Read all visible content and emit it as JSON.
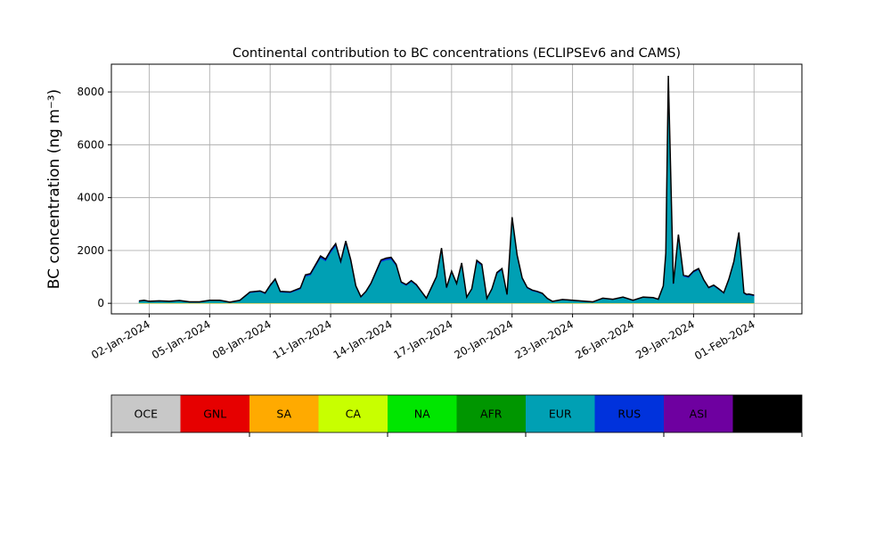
{
  "chart_data": {
    "type": "area",
    "stacked": true,
    "title": "Continental contribution to BC concentrations (ECLIPSEv6 and CAMS)",
    "xlabel": "",
    "ylabel": "BC concentration (ng m⁻³)",
    "ylim": [
      -400,
      9050
    ],
    "xlim": [
      "2023-12-31T03:00",
      "2024-02-03T09:00"
    ],
    "grid": true,
    "yticks": [
      0,
      2000,
      4000,
      6000,
      8000
    ],
    "ytick_labels": [
      "0",
      "2000",
      "4000",
      "6000",
      "8000"
    ],
    "xticks": [
      "2024-01-02",
      "2024-01-05",
      "2024-01-08",
      "2024-01-11",
      "2024-01-14",
      "2024-01-17",
      "2024-01-20",
      "2024-01-23",
      "2024-01-26",
      "2024-01-29",
      "2024-02-01"
    ],
    "xtick_labels": [
      "02-Jan-2024",
      "05-Jan-2024",
      "08-Jan-2024",
      "11-Jan-2024",
      "14-Jan-2024",
      "17-Jan-2024",
      "20-Jan-2024",
      "23-Jan-2024",
      "26-Jan-2024",
      "29-Jan-2024",
      "01-Feb-2024"
    ],
    "legend": {
      "placement": "bottom",
      "entries": [
        {
          "label": "OCE",
          "color": "#c8c8c8"
        },
        {
          "label": "GNL",
          "color": "#e60000"
        },
        {
          "label": "SA",
          "color": "#ffaa00"
        },
        {
          "label": "CA",
          "color": "#c8ff00"
        },
        {
          "label": "NA",
          "color": "#00e600"
        },
        {
          "label": "AFR",
          "color": "#009600"
        },
        {
          "label": "EUR",
          "color": "#00a0b4"
        },
        {
          "label": "RUS",
          "color": "#0032dc"
        },
        {
          "label": "ASI",
          "color": "#6e00a0"
        },
        {
          "label": "AUS",
          "color": "#000000"
        }
      ]
    },
    "x": [
      "2024-01-01T12:00",
      "2024-01-01T18:00",
      "2024-01-02T00:00",
      "2024-01-02T12:00",
      "2024-01-03T00:00",
      "2024-01-03T12:00",
      "2024-01-04T00:00",
      "2024-01-04T12:00",
      "2024-01-05T00:00",
      "2024-01-05T12:00",
      "2024-01-06T00:00",
      "2024-01-06T12:00",
      "2024-01-07T00:00",
      "2024-01-07T12:00",
      "2024-01-07T18:00",
      "2024-01-08T00:00",
      "2024-01-08T06:00",
      "2024-01-08T12:00",
      "2024-01-09T00:00",
      "2024-01-09T12:00",
      "2024-01-09T18:00",
      "2024-01-10T00:00",
      "2024-01-10T12:00",
      "2024-01-10T18:00",
      "2024-01-11T00:00",
      "2024-01-11T06:00",
      "2024-01-11T12:00",
      "2024-01-11T18:00",
      "2024-01-12T00:00",
      "2024-01-12T06:00",
      "2024-01-12T12:00",
      "2024-01-12T18:00",
      "2024-01-13T00:00",
      "2024-01-13T12:00",
      "2024-01-13T18:00",
      "2024-01-14T00:00",
      "2024-01-14T06:00",
      "2024-01-14T12:00",
      "2024-01-14T18:00",
      "2024-01-15T00:00",
      "2024-01-15T06:00",
      "2024-01-15T12:00",
      "2024-01-15T18:00",
      "2024-01-16T06:00",
      "2024-01-16T12:00",
      "2024-01-16T18:00",
      "2024-01-17T00:00",
      "2024-01-17T06:00",
      "2024-01-17T12:00",
      "2024-01-17T18:00",
      "2024-01-18T00:00",
      "2024-01-18T06:00",
      "2024-01-18T12:00",
      "2024-01-18T18:00",
      "2024-01-19T00:00",
      "2024-01-19T06:00",
      "2024-01-19T12:00",
      "2024-01-19T18:00",
      "2024-01-20T00:00",
      "2024-01-20T06:00",
      "2024-01-20T12:00",
      "2024-01-20T18:00",
      "2024-01-21T00:00",
      "2024-01-21T06:00",
      "2024-01-21T12:00",
      "2024-01-21T18:00",
      "2024-01-22T00:00",
      "2024-01-22T12:00",
      "2024-01-23T00:00",
      "2024-01-23T12:00",
      "2024-01-24T00:00",
      "2024-01-24T12:00",
      "2024-01-25T00:00",
      "2024-01-25T12:00",
      "2024-01-26T00:00",
      "2024-01-26T12:00",
      "2024-01-27T00:00",
      "2024-01-27T06:00",
      "2024-01-27T12:00",
      "2024-01-27T15:00",
      "2024-01-27T18:00",
      "2024-01-28T00:00",
      "2024-01-28T06:00",
      "2024-01-28T12:00",
      "2024-01-28T18:00",
      "2024-01-29T00:00",
      "2024-01-29T06:00",
      "2024-01-29T12:00",
      "2024-01-29T18:00",
      "2024-01-30T00:00",
      "2024-01-30T06:00",
      "2024-01-30T12:00",
      "2024-01-30T18:00",
      "2024-01-31T00:00",
      "2024-01-31T06:00",
      "2024-01-31T12:00",
      "2024-01-31T15:00",
      "2024-01-31T18:00",
      "2024-02-01T00:00"
    ],
    "series": [
      {
        "name": "OCE",
        "values": [
          5,
          5,
          5,
          5,
          5,
          5,
          5,
          5,
          5,
          5,
          5,
          5,
          5,
          5,
          5,
          5,
          5,
          5,
          5,
          5,
          5,
          5,
          5,
          5,
          5,
          5,
          5,
          5,
          5,
          5,
          5,
          5,
          5,
          5,
          5,
          5,
          5,
          5,
          5,
          5,
          5,
          5,
          5,
          5,
          5,
          5,
          5,
          5,
          5,
          5,
          5,
          5,
          5,
          5,
          5,
          5,
          5,
          5,
          5,
          5,
          5,
          5,
          5,
          5,
          5,
          5,
          5,
          5,
          5,
          5,
          5,
          5,
          5,
          5,
          5,
          5,
          5,
          5,
          5,
          5,
          5,
          5,
          5,
          5,
          5,
          5,
          5,
          5,
          5,
          5,
          5,
          5,
          5,
          5,
          5,
          5,
          5,
          5,
          5
        ]
      },
      {
        "name": "GNL",
        "values": [
          0,
          0,
          0,
          0,
          0,
          0,
          0,
          0,
          0,
          0,
          0,
          0,
          0,
          0,
          0,
          0,
          0,
          0,
          0,
          0,
          0,
          0,
          0,
          0,
          0,
          0,
          0,
          0,
          0,
          0,
          0,
          0,
          0,
          0,
          0,
          0,
          0,
          0,
          0,
          0,
          0,
          0,
          0,
          0,
          0,
          0,
          0,
          0,
          0,
          0,
          0,
          0,
          0,
          0,
          0,
          0,
          0,
          0,
          0,
          0,
          0,
          0,
          0,
          0,
          0,
          0,
          0,
          0,
          0,
          0,
          0,
          0,
          0,
          0,
          0,
          0,
          0,
          0,
          0,
          0,
          0,
          0,
          0,
          0,
          0,
          0,
          0,
          0,
          0,
          0,
          0,
          0,
          0,
          0,
          0,
          0,
          0,
          0,
          0
        ]
      },
      {
        "name": "SA",
        "values": [
          0,
          0,
          0,
          0,
          0,
          0,
          0,
          0,
          0,
          0,
          0,
          0,
          0,
          0,
          0,
          0,
          0,
          0,
          0,
          0,
          0,
          0,
          0,
          0,
          0,
          0,
          0,
          0,
          0,
          0,
          0,
          0,
          0,
          0,
          0,
          0,
          0,
          0,
          0,
          0,
          0,
          0,
          0,
          0,
          0,
          0,
          0,
          0,
          0,
          0,
          0,
          0,
          0,
          0,
          0,
          0,
          0,
          0,
          0,
          0,
          0,
          0,
          0,
          0,
          0,
          0,
          0,
          0,
          0,
          0,
          0,
          0,
          0,
          0,
          0,
          0,
          0,
          0,
          0,
          0,
          0,
          0,
          0,
          0,
          0,
          0,
          0,
          0,
          0,
          0,
          0,
          0,
          0,
          0,
          0,
          0,
          0,
          0,
          0
        ]
      },
      {
        "name": "CA",
        "values": [
          10,
          10,
          10,
          10,
          10,
          10,
          10,
          10,
          10,
          10,
          10,
          10,
          10,
          10,
          10,
          10,
          10,
          10,
          10,
          10,
          10,
          10,
          10,
          10,
          10,
          10,
          10,
          10,
          10,
          10,
          10,
          10,
          10,
          10,
          10,
          10,
          10,
          10,
          10,
          10,
          10,
          10,
          10,
          10,
          10,
          10,
          10,
          10,
          10,
          10,
          10,
          10,
          10,
          10,
          10,
          10,
          10,
          10,
          10,
          10,
          10,
          10,
          10,
          10,
          10,
          10,
          10,
          10,
          10,
          10,
          10,
          10,
          10,
          10,
          10,
          10,
          10,
          10,
          10,
          10,
          10,
          10,
          10,
          10,
          10,
          10,
          10,
          10,
          10,
          10,
          10,
          10,
          10,
          10,
          10,
          10,
          10,
          10,
          10
        ]
      },
      {
        "name": "NA",
        "values": [
          5,
          5,
          5,
          5,
          5,
          5,
          5,
          5,
          5,
          5,
          5,
          5,
          5,
          5,
          5,
          5,
          5,
          5,
          5,
          5,
          5,
          5,
          5,
          5,
          5,
          5,
          5,
          5,
          5,
          5,
          5,
          5,
          5,
          5,
          5,
          5,
          5,
          5,
          5,
          5,
          5,
          5,
          5,
          5,
          5,
          5,
          5,
          5,
          5,
          5,
          5,
          5,
          5,
          5,
          5,
          5,
          5,
          5,
          5,
          5,
          5,
          5,
          5,
          5,
          5,
          5,
          5,
          5,
          5,
          5,
          5,
          5,
          5,
          5,
          5,
          5,
          5,
          5,
          5,
          5,
          5,
          5,
          5,
          5,
          5,
          5,
          5,
          5,
          5,
          5,
          5,
          5,
          5,
          5,
          5,
          5,
          5,
          5,
          5
        ]
      },
      {
        "name": "AFR",
        "values": [
          0,
          0,
          0,
          0,
          0,
          0,
          0,
          0,
          0,
          0,
          0,
          0,
          0,
          0,
          0,
          0,
          0,
          0,
          0,
          0,
          0,
          0,
          0,
          0,
          0,
          0,
          0,
          0,
          0,
          0,
          0,
          0,
          0,
          0,
          0,
          0,
          0,
          0,
          0,
          0,
          0,
          0,
          0,
          0,
          0,
          0,
          0,
          0,
          0,
          0,
          0,
          0,
          0,
          0,
          0,
          0,
          0,
          0,
          0,
          0,
          0,
          0,
          0,
          0,
          0,
          0,
          0,
          0,
          0,
          0,
          0,
          0,
          0,
          0,
          0,
          0,
          0,
          0,
          0,
          0,
          0,
          0,
          0,
          0,
          0,
          0,
          0,
          0,
          0,
          0,
          0,
          0,
          0,
          0,
          0,
          0,
          0,
          0,
          0
        ]
      },
      {
        "name": "EUR",
        "values": [
          55,
          80,
          40,
          60,
          40,
          70,
          20,
          20,
          80,
          80,
          10,
          80,
          380,
          420,
          340,
          620,
          860,
          400,
          380,
          520,
          1000,
          1050,
          1700,
          1580,
          1900,
          2150,
          1500,
          2250,
          1550,
          600,
          200,
          400,
          700,
          1550,
          1620,
          1650,
          1400,
          750,
          650,
          800,
          650,
          400,
          150,
          950,
          2000,
          550,
          1150,
          700,
          1450,
          200,
          500,
          1550,
          1400,
          150,
          500,
          1100,
          1250,
          300,
          3150,
          1750,
          900,
          550,
          450,
          400,
          330,
          150,
          40,
          110,
          80,
          50,
          20,
          160,
          120,
          200,
          80,
          200,
          180,
          120,
          600,
          1800,
          8400,
          700,
          2500,
          1000,
          950,
          1150,
          1250,
          850,
          550,
          640,
          500,
          350,
          850,
          1500,
          2600,
          350,
          290,
          300,
          260
        ]
      },
      {
        "name": "RUS",
        "values": [
          10,
          10,
          10,
          10,
          10,
          10,
          10,
          10,
          10,
          10,
          10,
          10,
          20,
          20,
          20,
          30,
          30,
          20,
          20,
          30,
          40,
          40,
          50,
          50,
          60,
          60,
          50,
          60,
          50,
          30,
          20,
          20,
          30,
          50,
          50,
          50,
          40,
          30,
          30,
          30,
          30,
          20,
          20,
          30,
          50,
          20,
          30,
          20,
          40,
          10,
          20,
          40,
          40,
          10,
          20,
          30,
          30,
          10,
          60,
          40,
          30,
          20,
          20,
          20,
          20,
          10,
          10,
          10,
          10,
          10,
          10,
          10,
          10,
          10,
          10,
          10,
          10,
          10,
          30,
          60,
          140,
          20,
          60,
          30,
          30,
          30,
          30,
          20,
          20,
          20,
          20,
          20,
          30,
          40,
          40,
          20,
          20,
          20,
          20
        ]
      },
      {
        "name": "ASI",
        "values": [
          5,
          5,
          5,
          5,
          5,
          5,
          5,
          5,
          5,
          5,
          5,
          5,
          10,
          10,
          10,
          10,
          10,
          10,
          10,
          10,
          15,
          15,
          20,
          20,
          20,
          25,
          20,
          25,
          20,
          10,
          10,
          10,
          10,
          20,
          20,
          20,
          15,
          10,
          10,
          10,
          10,
          10,
          5,
          10,
          20,
          10,
          15,
          10,
          15,
          5,
          10,
          15,
          15,
          5,
          10,
          15,
          15,
          5,
          30,
          20,
          15,
          10,
          10,
          10,
          10,
          5,
          5,
          5,
          5,
          5,
          5,
          5,
          5,
          5,
          5,
          5,
          5,
          5,
          10,
          20,
          50,
          10,
          20,
          15,
          15,
          15,
          15,
          10,
          10,
          10,
          10,
          10,
          10,
          20,
          20,
          10,
          10,
          10,
          10
        ]
      },
      {
        "name": "AUS",
        "values": [
          0,
          0,
          0,
          0,
          0,
          0,
          0,
          0,
          0,
          0,
          0,
          0,
          0,
          0,
          0,
          0,
          0,
          0,
          0,
          0,
          0,
          0,
          0,
          0,
          0,
          0,
          0,
          0,
          0,
          0,
          0,
          0,
          0,
          0,
          0,
          0,
          0,
          0,
          0,
          0,
          0,
          0,
          0,
          0,
          0,
          0,
          0,
          0,
          0,
          0,
          0,
          0,
          0,
          0,
          0,
          0,
          0,
          0,
          0,
          0,
          0,
          0,
          0,
          0,
          0,
          0,
          0,
          0,
          0,
          0,
          0,
          0,
          0,
          0,
          0,
          0,
          0,
          0,
          0,
          0,
          0,
          0,
          0,
          0,
          0,
          0,
          0,
          0,
          0,
          0,
          0,
          0,
          0,
          0,
          0,
          0,
          0,
          0,
          0
        ]
      }
    ]
  }
}
